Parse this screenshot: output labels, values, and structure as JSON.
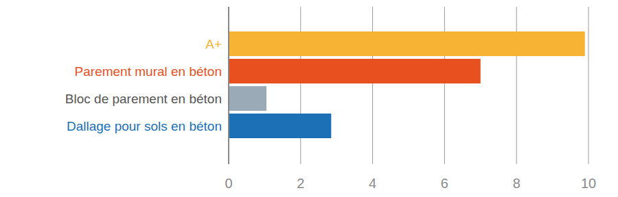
{
  "chart_data": {
    "type": "bar",
    "orientation": "horizontal",
    "categories": [
      "A+",
      "Parement mural en béton",
      "Bloc de parement en béton",
      "Dallage pour sols en béton"
    ],
    "values": [
      9.9,
      7.0,
      1.05,
      2.85
    ],
    "colors": [
      "#f7b334",
      "#e8511f",
      "#9aaab6",
      "#1b70b6"
    ],
    "xlim": [
      0,
      10
    ],
    "xticks": [
      0,
      2,
      4,
      6,
      8,
      10
    ],
    "grid": true
  }
}
